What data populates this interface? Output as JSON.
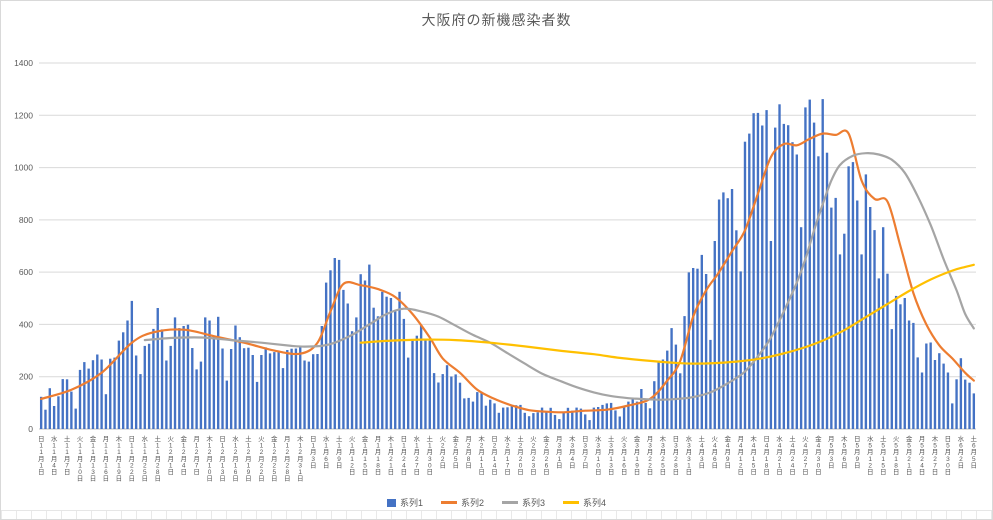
{
  "chart_data": {
    "type": "bar",
    "title": "大阪府の新機感染者数",
    "y_axis": {
      "min": 0,
      "max": 1400,
      "step": 200
    },
    "colors": {
      "bars": "#4472C4",
      "series2": "#ED7D31",
      "series3": "#A5A5A5",
      "series4": "#FFC000",
      "gridline": "#D9D9D9",
      "axis_line": "#BFBFBF",
      "axis_text": "#595959"
    },
    "legend": [
      {
        "name": "系列1",
        "color": "#4472C4",
        "marker": "bar"
      },
      {
        "name": "系列2",
        "color": "#ED7D31",
        "marker": "line"
      },
      {
        "name": "系列3",
        "color": "#A5A5A5",
        "marker": "line"
      },
      {
        "name": "系列4",
        "color": "#FFC000",
        "marker": "line"
      }
    ],
    "x_tick_every_days": 3,
    "x_tick_labels": [
      "日11月1日",
      "水11月4日",
      "土11月7日",
      "火11月10日",
      "金11月13日",
      "月11月16日",
      "木11月19日",
      "日11月22日",
      "水11月25日",
      "土11月28日",
      "火12月1日",
      "金12月4日",
      "月12月7日",
      "木12月10日",
      "日12月13日",
      "水12月16日",
      "土12月19日",
      "火12月22日",
      "金12月25日",
      "月12月28日",
      "木12月31日",
      "日1月3日",
      "水1月6日",
      "土1月9日",
      "火1月12日",
      "金1月15日",
      "月1月18日",
      "木1月21日",
      "日1月24日",
      "水1月27日",
      "土1月30日",
      "火2月2日",
      "金2月5日",
      "月2月8日",
      "木2月11日",
      "日2月14日",
      "水2月17日",
      "土2月20日",
      "火2月23日",
      "金2月26日",
      "月3月1日",
      "木3月4日",
      "日3月7日",
      "水3月10日",
      "土3月13日",
      "火3月16日",
      "金3月19日",
      "月3月22日",
      "木3月25日",
      "日3月28日",
      "水3月31日",
      "土4月3日",
      "火4月6日",
      "金4月9日",
      "月4月12日",
      "木4月15日",
      "日4月18日",
      "水4月21日",
      "土4月24日",
      "火4月27日",
      "金4月30日",
      "月5月3日",
      "木5月6日",
      "日5月9日",
      "水5月12日",
      "土5月15日",
      "火5月18日",
      "金5月21日",
      "月5月24日",
      "木5月27日",
      "日5月30日",
      "水6月2日",
      "土6月5日"
    ],
    "series1_bars": [
      123,
      74,
      156,
      88,
      125,
      191,
      190,
      143,
      78,
      226,
      256,
      231,
      263,
      285,
      266,
      133,
      269,
      273,
      338,
      370,
      415,
      490,
      281,
      210,
      318,
      326,
      383,
      463,
      381,
      262,
      318,
      427,
      386,
      394,
      399,
      310,
      228,
      258,
      427,
      415,
      357,
      429,
      308,
      185,
      306,
      396,
      351,
      309,
      311,
      283,
      180,
      283,
      312,
      289,
      294,
      299,
      233,
      302,
      307,
      308,
      313,
      262,
      258,
      286,
      287,
      394,
      560,
      607,
      654,
      647,
      532,
      480,
      374,
      427,
      592,
      568,
      629,
      464,
      431,
      525,
      506,
      501,
      450,
      525,
      421,
      273,
      343,
      357,
      397,
      346,
      338,
      214,
      178,
      210,
      244,
      201,
      209,
      177,
      117,
      119,
      105,
      141,
      141,
      89,
      112,
      98,
      62,
      82,
      83,
      91,
      91,
      92,
      62,
      49,
      61,
      64,
      82,
      69,
      81,
      54,
      38,
      65,
      81,
      70,
      82,
      78,
      56,
      34,
      82,
      84,
      92,
      98,
      100,
      71,
      48,
      87,
      105,
      116,
      105,
      153,
      100,
      79,
      183,
      262,
      266,
      300,
      386,
      323,
      213,
      432,
      599,
      616,
      613,
      666,
      593,
      341,
      719,
      878,
      905,
      883,
      918,
      760,
      603,
      1099,
      1130,
      1208,
      1209,
      1161,
      1220,
      719,
      1153,
      1242,
      1167,
      1162,
      1097,
      1050,
      772,
      1230,
      1260,
      1172,
      1043,
      1262,
      1057,
      847,
      884,
      668,
      747,
      1005,
      1021,
      874,
      668,
      974,
      849,
      761,
      576,
      772,
      594,
      382,
      509,
      477,
      501,
      415,
      406,
      274,
      216,
      327,
      331,
      264,
      290,
      250,
      216,
      98,
      190,
      271,
      189,
      177,
      136
    ],
    "series2_line_points": [
      [
        0,
        115
      ],
      [
        7,
        150
      ],
      [
        14,
        215
      ],
      [
        21,
        330
      ],
      [
        26,
        370
      ],
      [
        33,
        380
      ],
      [
        40,
        355
      ],
      [
        47,
        330
      ],
      [
        54,
        300
      ],
      [
        60,
        288
      ],
      [
        64,
        330
      ],
      [
        67,
        450
      ],
      [
        70,
        555
      ],
      [
        74,
        550
      ],
      [
        78,
        535
      ],
      [
        82,
        505
      ],
      [
        86,
        440
      ],
      [
        90,
        350
      ],
      [
        93,
        270
      ],
      [
        97,
        215
      ],
      [
        101,
        150
      ],
      [
        105,
        115
      ],
      [
        109,
        90
      ],
      [
        113,
        72
      ],
      [
        117,
        66
      ],
      [
        121,
        64
      ],
      [
        126,
        70
      ],
      [
        131,
        74
      ],
      [
        136,
        90
      ],
      [
        141,
        115
      ],
      [
        145,
        185
      ],
      [
        148,
        260
      ],
      [
        151,
        430
      ],
      [
        154,
        530
      ],
      [
        157,
        600
      ],
      [
        160,
        680
      ],
      [
        163,
        760
      ],
      [
        166,
        900
      ],
      [
        169,
        1040
      ],
      [
        172,
        1090
      ],
      [
        175,
        1085
      ],
      [
        178,
        1110
      ],
      [
        181,
        1130
      ],
      [
        184,
        1125
      ],
      [
        187,
        1130
      ],
      [
        190,
        950
      ],
      [
        193,
        880
      ],
      [
        196,
        870
      ],
      [
        199,
        700
      ],
      [
        202,
        520
      ],
      [
        205,
        400
      ],
      [
        208,
        320
      ],
      [
        211,
        270
      ],
      [
        214,
        215
      ],
      [
        216,
        185
      ]
    ],
    "series3_line_points": [
      [
        24,
        340
      ],
      [
        30,
        348
      ],
      [
        37,
        350
      ],
      [
        44,
        340
      ],
      [
        51,
        330
      ],
      [
        58,
        318
      ],
      [
        61,
        315
      ],
      [
        65,
        318
      ],
      [
        68,
        330
      ],
      [
        72,
        360
      ],
      [
        76,
        400
      ],
      [
        80,
        440
      ],
      [
        84,
        460
      ],
      [
        88,
        450
      ],
      [
        92,
        430
      ],
      [
        96,
        395
      ],
      [
        100,
        360
      ],
      [
        104,
        330
      ],
      [
        108,
        290
      ],
      [
        112,
        250
      ],
      [
        116,
        212
      ],
      [
        120,
        185
      ],
      [
        124,
        160
      ],
      [
        128,
        140
      ],
      [
        132,
        126
      ],
      [
        136,
        118
      ],
      [
        140,
        114
      ],
      [
        144,
        112
      ],
      [
        148,
        116
      ],
      [
        151,
        122
      ],
      [
        155,
        140
      ],
      [
        159,
        175
      ],
      [
        163,
        220
      ],
      [
        167,
        300
      ],
      [
        169,
        350
      ],
      [
        172,
        450
      ],
      [
        175,
        560
      ],
      [
        177,
        650
      ],
      [
        179,
        760
      ],
      [
        181,
        860
      ],
      [
        183,
        950
      ],
      [
        185,
        1010
      ],
      [
        188,
        1045
      ],
      [
        191,
        1055
      ],
      [
        194,
        1050
      ],
      [
        197,
        1030
      ],
      [
        200,
        980
      ],
      [
        203,
        890
      ],
      [
        206,
        780
      ],
      [
        209,
        650
      ],
      [
        212,
        530
      ],
      [
        214,
        440
      ],
      [
        216,
        385
      ]
    ],
    "series4_line_points": [
      [
        74,
        330
      ],
      [
        80,
        337
      ],
      [
        88,
        342
      ],
      [
        96,
        340
      ],
      [
        104,
        330
      ],
      [
        112,
        316
      ],
      [
        120,
        300
      ],
      [
        128,
        286
      ],
      [
        134,
        272
      ],
      [
        140,
        262
      ],
      [
        146,
        254
      ],
      [
        151,
        250
      ],
      [
        156,
        252
      ],
      [
        161,
        258
      ],
      [
        166,
        268
      ],
      [
        171,
        285
      ],
      [
        176,
        308
      ],
      [
        181,
        338
      ],
      [
        186,
        378
      ],
      [
        191,
        428
      ],
      [
        196,
        478
      ],
      [
        201,
        528
      ],
      [
        206,
        572
      ],
      [
        211,
        606
      ],
      [
        214,
        620
      ],
      [
        216,
        628
      ]
    ]
  }
}
